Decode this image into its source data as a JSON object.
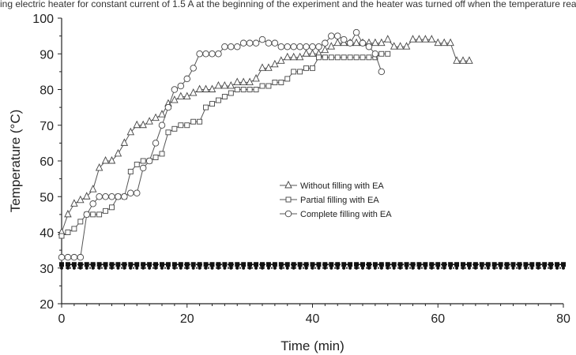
{
  "header": {
    "caption": "ing electric heater for constant current of 1.5 A at the beginning of the experiment and the heater was turned off when the temperature reached its peak and then allowed to cool"
  },
  "chart_data": {
    "type": "line",
    "title": "",
    "xlabel": "Time (min)",
    "ylabel": "Temperature (°C)",
    "xlim": [
      0,
      80
    ],
    "ylim": [
      20,
      100
    ],
    "xticks": [
      0,
      20,
      40,
      60,
      80
    ],
    "yticks": [
      20,
      30,
      40,
      50,
      60,
      70,
      80,
      90,
      100
    ],
    "grid": false,
    "legend_position": "center-right",
    "series": [
      {
        "name": "Without filling with EA",
        "marker": "triangle",
        "points": [
          [
            0,
            40
          ],
          [
            1,
            45
          ],
          [
            2,
            48
          ],
          [
            3,
            49
          ],
          [
            4,
            50
          ],
          [
            5,
            52
          ],
          [
            6,
            58
          ],
          [
            7,
            60
          ],
          [
            8,
            60
          ],
          [
            9,
            62
          ],
          [
            10,
            65
          ],
          [
            11,
            68
          ],
          [
            12,
            70
          ],
          [
            13,
            70
          ],
          [
            14,
            71
          ],
          [
            15,
            72
          ],
          [
            16,
            73
          ],
          [
            17,
            76
          ],
          [
            18,
            77
          ],
          [
            19,
            78
          ],
          [
            20,
            78
          ],
          [
            21,
            79
          ],
          [
            22,
            80
          ],
          [
            23,
            80
          ],
          [
            24,
            80
          ],
          [
            25,
            81
          ],
          [
            26,
            81
          ],
          [
            27,
            81
          ],
          [
            28,
            82
          ],
          [
            29,
            82
          ],
          [
            30,
            82
          ],
          [
            31,
            83
          ],
          [
            32,
            86
          ],
          [
            33,
            86
          ],
          [
            34,
            87
          ],
          [
            35,
            88
          ],
          [
            36,
            89
          ],
          [
            37,
            89
          ],
          [
            38,
            89
          ],
          [
            39,
            90
          ],
          [
            40,
            90
          ],
          [
            41,
            90
          ],
          [
            42,
            91
          ],
          [
            43,
            92
          ],
          [
            44,
            93
          ],
          [
            45,
            93
          ],
          [
            46,
            93
          ],
          [
            47,
            93
          ],
          [
            48,
            93
          ],
          [
            49,
            93
          ],
          [
            50,
            93
          ],
          [
            51,
            93
          ],
          [
            52,
            94
          ],
          [
            53,
            92
          ],
          [
            54,
            92
          ],
          [
            55,
            92
          ],
          [
            56,
            94
          ],
          [
            57,
            94
          ],
          [
            58,
            94
          ],
          [
            59,
            94
          ],
          [
            60,
            93
          ],
          [
            61,
            93
          ],
          [
            62,
            93
          ],
          [
            63,
            88
          ],
          [
            64,
            88
          ],
          [
            65,
            88
          ]
        ]
      },
      {
        "name": "Partial filling with EA",
        "marker": "square",
        "points": [
          [
            0,
            39
          ],
          [
            1,
            40
          ],
          [
            2,
            41
          ],
          [
            3,
            43
          ],
          [
            4,
            45
          ],
          [
            5,
            45
          ],
          [
            6,
            45
          ],
          [
            7,
            46
          ],
          [
            8,
            47
          ],
          [
            9,
            50
          ],
          [
            10,
            50
          ],
          [
            11,
            57
          ],
          [
            12,
            59
          ],
          [
            13,
            60
          ],
          [
            14,
            60
          ],
          [
            15,
            61
          ],
          [
            16,
            62
          ],
          [
            17,
            68
          ],
          [
            18,
            69
          ],
          [
            19,
            70
          ],
          [
            20,
            70
          ],
          [
            21,
            71
          ],
          [
            22,
            71
          ],
          [
            23,
            75
          ],
          [
            24,
            76
          ],
          [
            25,
            77
          ],
          [
            26,
            78
          ],
          [
            27,
            79
          ],
          [
            28,
            80
          ],
          [
            29,
            80
          ],
          [
            30,
            80
          ],
          [
            31,
            80
          ],
          [
            32,
            81
          ],
          [
            33,
            81
          ],
          [
            34,
            82
          ],
          [
            35,
            82
          ],
          [
            36,
            83
          ],
          [
            37,
            85
          ],
          [
            38,
            85
          ],
          [
            39,
            86
          ],
          [
            40,
            86
          ],
          [
            41,
            89
          ],
          [
            42,
            89
          ],
          [
            43,
            89
          ],
          [
            44,
            89
          ],
          [
            45,
            89
          ],
          [
            46,
            89
          ],
          [
            47,
            89
          ],
          [
            48,
            89
          ],
          [
            49,
            89
          ],
          [
            50,
            89
          ],
          [
            51,
            90
          ],
          [
            52,
            90
          ]
        ]
      },
      {
        "name": "Complete filling with EA",
        "marker": "circle",
        "points": [
          [
            0,
            33
          ],
          [
            1,
            33
          ],
          [
            2,
            33
          ],
          [
            3,
            33
          ],
          [
            4,
            45
          ],
          [
            5,
            48
          ],
          [
            6,
            50
          ],
          [
            7,
            50
          ],
          [
            8,
            50
          ],
          [
            9,
            50
          ],
          [
            10,
            50
          ],
          [
            11,
            51
          ],
          [
            12,
            51
          ],
          [
            13,
            58
          ],
          [
            14,
            60
          ],
          [
            15,
            65
          ],
          [
            16,
            70
          ],
          [
            17,
            75
          ],
          [
            18,
            80
          ],
          [
            19,
            81
          ],
          [
            20,
            83
          ],
          [
            21,
            86
          ],
          [
            22,
            90
          ],
          [
            23,
            90
          ],
          [
            24,
            90
          ],
          [
            25,
            90
          ],
          [
            26,
            92
          ],
          [
            27,
            92
          ],
          [
            28,
            92
          ],
          [
            29,
            93
          ],
          [
            30,
            93
          ],
          [
            31,
            93
          ],
          [
            32,
            94
          ],
          [
            33,
            93
          ],
          [
            34,
            93
          ],
          [
            35,
            92
          ],
          [
            36,
            92
          ],
          [
            37,
            92
          ],
          [
            38,
            92
          ],
          [
            39,
            92
          ],
          [
            40,
            92
          ],
          [
            41,
            92
          ],
          [
            42,
            93
          ],
          [
            43,
            95
          ],
          [
            44,
            95
          ],
          [
            45,
            94
          ],
          [
            46,
            93
          ],
          [
            47,
            96
          ],
          [
            48,
            93
          ],
          [
            49,
            92
          ],
          [
            50,
            90
          ],
          [
            51,
            85
          ]
        ]
      },
      {
        "name": "",
        "marker": "square-filled",
        "points": [
          [
            0,
            31
          ],
          [
            80,
            31
          ]
        ]
      },
      {
        "name": "",
        "marker": "dot",
        "points": [
          [
            0,
            30
          ],
          [
            80,
            30
          ]
        ]
      }
    ]
  }
}
